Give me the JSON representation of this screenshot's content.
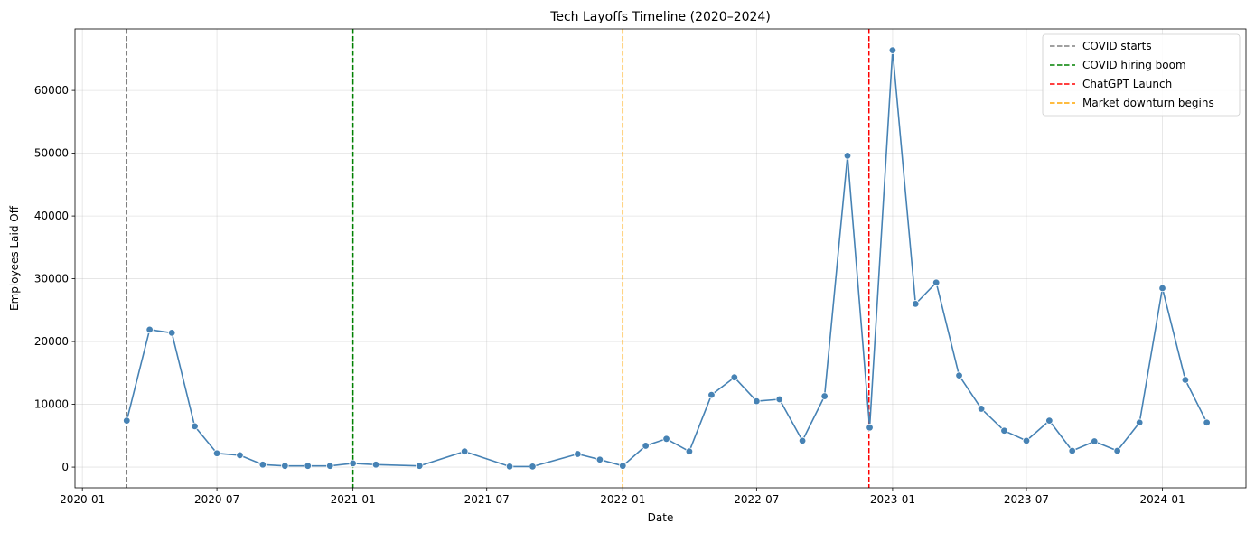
{
  "chart_data": {
    "type": "line",
    "title": "Tech Layoffs Timeline (2020–2024)",
    "xlabel": "Date",
    "ylabel": "Employees Laid Off",
    "x_ticks": [
      "2020-01",
      "2020-07",
      "2021-01",
      "2021-07",
      "2022-01",
      "2022-07",
      "2023-01",
      "2023-07",
      "2024-01"
    ],
    "y_ticks": [
      0,
      10000,
      20000,
      30000,
      40000,
      50000,
      60000
    ],
    "x_range": [
      "2019-12-22",
      "2024-04-23"
    ],
    "ylim": [
      -3300,
      69800
    ],
    "grid": true,
    "legend_position": "top-right",
    "series": [
      {
        "color": "#4682b4",
        "marker": "circle",
        "points": [
          [
            "2020-03-01",
            7400
          ],
          [
            "2020-04-01",
            21900
          ],
          [
            "2020-05-01",
            21400
          ],
          [
            "2020-06-01",
            6500
          ],
          [
            "2020-07-01",
            2200
          ],
          [
            "2020-08-01",
            1900
          ],
          [
            "2020-09-01",
            400
          ],
          [
            "2020-10-01",
            200
          ],
          [
            "2020-11-01",
            200
          ],
          [
            "2020-12-01",
            200
          ],
          [
            "2021-01-01",
            600
          ],
          [
            "2021-02-01",
            400
          ],
          [
            "2021-04-01",
            200
          ],
          [
            "2021-06-01",
            2500
          ],
          [
            "2021-08-01",
            100
          ],
          [
            "2021-09-01",
            100
          ],
          [
            "2021-11-01",
            2100
          ],
          [
            "2021-12-01",
            1200
          ],
          [
            "2022-01-01",
            200
          ],
          [
            "2022-02-01",
            3400
          ],
          [
            "2022-03-01",
            4500
          ],
          [
            "2022-04-01",
            2500
          ],
          [
            "2022-05-01",
            11500
          ],
          [
            "2022-06-01",
            14300
          ],
          [
            "2022-07-01",
            10500
          ],
          [
            "2022-08-01",
            10800
          ],
          [
            "2022-09-01",
            4200
          ],
          [
            "2022-10-01",
            11300
          ],
          [
            "2022-11-01",
            49600
          ],
          [
            "2022-12-01",
            6300
          ],
          [
            "2023-01-01",
            66400
          ],
          [
            "2023-02-01",
            26000
          ],
          [
            "2023-03-01",
            29400
          ],
          [
            "2023-04-01",
            14600
          ],
          [
            "2023-05-01",
            9300
          ],
          [
            "2023-06-01",
            5800
          ],
          [
            "2023-07-01",
            4200
          ],
          [
            "2023-08-01",
            7400
          ],
          [
            "2023-09-01",
            2600
          ],
          [
            "2023-10-01",
            4100
          ],
          [
            "2023-11-01",
            2600
          ],
          [
            "2023-12-01",
            7100
          ],
          [
            "2024-01-01",
            28500
          ],
          [
            "2024-02-01",
            13900
          ],
          [
            "2024-03-01",
            7100
          ]
        ]
      }
    ],
    "vlines": [
      {
        "date": "2020-03-01",
        "label": "COVID starts",
        "color": "#808080"
      },
      {
        "date": "2021-01-01",
        "label": "COVID hiring boom",
        "color": "#008000"
      },
      {
        "date": "2022-11-30",
        "label": "ChatGPT Launch",
        "color": "#ff0000"
      },
      {
        "date": "2022-01-01",
        "label": "Market downturn begins",
        "color": "#ffa500"
      }
    ],
    "legend": [
      {
        "label": "COVID starts",
        "color": "#808080"
      },
      {
        "label": "COVID hiring boom",
        "color": "#008000"
      },
      {
        "label": "ChatGPT Launch",
        "color": "#ff0000"
      },
      {
        "label": "Market downturn begins",
        "color": "#ffa500"
      }
    ]
  }
}
